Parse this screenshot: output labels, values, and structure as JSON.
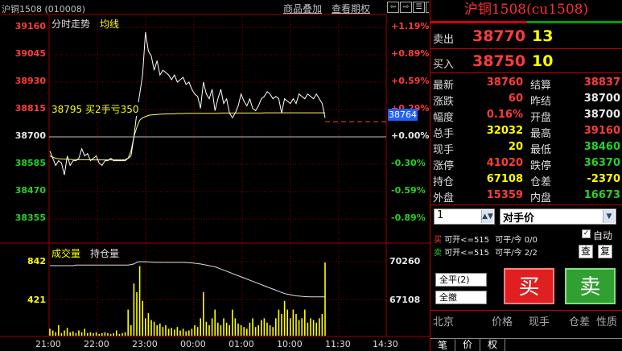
{
  "header": {
    "symbol_title": "沪铜1508 (010008)",
    "link_overlay": "商品叠加",
    "link_options": "查看期权",
    "chart_label": "分时走势",
    "avg_label": "均线",
    "volume_label": "成交量",
    "oi_label": "持仓量",
    "win_btn_1": "⇦",
    "win_btn_2": "⇨",
    "win_btn_3": "☰",
    "win_btn_4": "▦"
  },
  "axes": {
    "price_ticks": [
      "39160",
      "39045",
      "38930",
      "38815",
      "38700",
      "38585",
      "38470",
      "38355"
    ],
    "pct_ticks": [
      "+1.19%",
      "+0.89%",
      "+0.59%",
      "+0.29%",
      "+0.00%",
      "-0.30%",
      "-0.59%",
      "-0.89%"
    ],
    "vol_ticks": [
      "842",
      "421"
    ],
    "oi_ticks": [
      "70260",
      "67108"
    ],
    "time_ticks": [
      "21:00",
      "22:00",
      "23:00",
      "00:00",
      "01:00",
      "10:00",
      "11:30",
      "14:30"
    ],
    "current_price_tag": "38764",
    "cursor_info": "38795 买2手亏350"
  },
  "chart_data": {
    "type": "line",
    "ylim": [
      38355,
      39160
    ],
    "prev_settle": 38700,
    "price_series_name": "",
    "avg_series_name": "均线",
    "price": [
      38640,
      38610,
      38580,
      38600,
      38590,
      38540,
      38620,
      38580,
      38600,
      38600,
      38610,
      38650,
      38620,
      38630,
      38600,
      38610,
      38620,
      38590,
      38580,
      38600,
      38600,
      38610,
      38600,
      38600,
      38600,
      38600,
      38600,
      38610,
      38620,
      38700,
      38800,
      38880,
      38960,
      39140,
      39060,
      39040,
      38980,
      39020,
      38960,
      38980,
      38970,
      38960,
      38940,
      38960,
      38930,
      38940,
      38950,
      38920,
      38930,
      38900,
      38880,
      38870,
      38820,
      38930,
      38880,
      38860,
      38900,
      38810,
      38860,
      38900,
      38840,
      38860,
      38800,
      38780,
      38800,
      38830,
      38880,
      38850,
      38830,
      38860,
      38820,
      38810,
      38830,
      38860,
      38870,
      38890,
      38880,
      38860,
      38870,
      38860,
      38800,
      38860,
      38850,
      38840,
      38860,
      38840,
      38880,
      38870,
      38860,
      38880,
      38870,
      38860,
      38880,
      38860,
      38840,
      38780
    ],
    "avg": [
      38620,
      38615,
      38610,
      38608,
      38607,
      38606,
      38606,
      38605,
      38605,
      38604,
      38604,
      38604,
      38604,
      38604,
      38604,
      38603,
      38603,
      38603,
      38603,
      38603,
      38603,
      38603,
      38603,
      38603,
      38603,
      38603,
      38605,
      38610,
      38640,
      38700,
      38740,
      38770,
      38780,
      38785,
      38790,
      38792,
      38793,
      38794,
      38795,
      38796,
      38796,
      38797,
      38797,
      38797,
      38798,
      38798,
      38798,
      38799,
      38799,
      38799,
      38799,
      38799,
      38799,
      38799,
      38799,
      38799,
      38799,
      38799,
      38799,
      38800,
      38800,
      38800,
      38800,
      38800,
      38800,
      38800,
      38800,
      38800,
      38800,
      38800,
      38800,
      38800,
      38800,
      38800,
      38801,
      38801,
      38801,
      38801,
      38801,
      38801,
      38801,
      38801,
      38801,
      38801,
      38801,
      38801,
      38801,
      38801,
      38801,
      38801,
      38801,
      38801,
      38801,
      38801,
      38801,
      38801
    ],
    "volume": [
      80,
      60,
      40,
      120,
      30,
      60,
      90,
      40,
      50,
      30,
      60,
      40,
      80,
      30,
      40,
      30,
      40,
      20,
      30,
      40,
      30,
      20,
      30,
      60,
      20,
      30,
      40,
      300,
      120,
      600,
      500,
      800,
      400,
      200,
      260,
      180,
      160,
      120,
      140,
      100,
      120,
      80,
      90,
      70,
      100,
      60,
      80,
      50,
      60,
      80,
      120,
      100,
      200,
      500,
      160,
      120,
      200,
      300,
      150,
      120,
      200,
      150,
      120,
      300,
      200,
      140,
      120,
      100,
      80,
      150,
      200,
      100,
      120,
      180,
      200,
      150,
      120,
      100,
      200,
      300,
      250,
      400,
      300,
      200,
      300,
      250,
      180,
      200,
      300,
      150,
      200,
      180,
      150,
      200,
      250,
      842
    ],
    "open_interest": [
      69900,
      69900,
      69900,
      69900,
      69900,
      69900,
      69900,
      69900,
      69900,
      69950,
      69950,
      69950,
      69950,
      69950,
      69950,
      69950,
      69950,
      69950,
      69950,
      69950,
      69950,
      69950,
      69950,
      69950,
      69950,
      69950,
      69950,
      69950,
      70000,
      70050,
      70200,
      70260,
      70240,
      70250,
      70230,
      70220,
      70200,
      70200,
      70200,
      70200,
      70200,
      70200,
      70200,
      70200,
      70200,
      70200,
      70200,
      70180,
      70160,
      70150,
      70120,
      70080,
      70050,
      70000,
      69950,
      69900,
      69850,
      69800,
      69700,
      69600,
      69500,
      69400,
      69300,
      69200,
      69100,
      69000,
      68900,
      68800,
      68700,
      68600,
      68500,
      68400,
      68300,
      68200,
      68100,
      68000,
      67900,
      67800,
      67700,
      67600,
      67500,
      67400,
      67350,
      67300,
      67250,
      67200,
      67180,
      67150,
      67130,
      67120,
      67110,
      67108,
      67108,
      67108,
      67108,
      67108
    ],
    "vol_max": 842,
    "oi_range": [
      65000,
      70260
    ]
  },
  "panel": {
    "title": "沪铜1508(cu1508)",
    "sell_label": "卖出",
    "sell_price": "38770",
    "sell_qty": "13",
    "buy_label": "买入",
    "buy_price": "38750",
    "buy_qty": "10",
    "stats": [
      {
        "l": "最新",
        "v": "38760",
        "vc": "red",
        "l2": "结算",
        "v2": "38837",
        "v2c": "red"
      },
      {
        "l": "涨跌",
        "v": "60",
        "vc": "red",
        "l2": "昨结",
        "v2": "38700",
        "v2c": "wht"
      },
      {
        "l": "幅度",
        "v": "0.16%",
        "vc": "red",
        "l2": "开盘",
        "v2": "38700",
        "v2c": "wht"
      },
      {
        "l": "总手",
        "v": "32032",
        "vc": "yel",
        "l2": "最高",
        "v2": "39160",
        "v2c": "red"
      },
      {
        "l": "现手",
        "v": "20",
        "vc": "yel",
        "l2": "最低",
        "v2": "38460",
        "v2c": "grn"
      },
      {
        "l": "涨停",
        "v": "41020",
        "vc": "red",
        "l2": "跌停",
        "v2": "36370",
        "v2c": "grn"
      },
      {
        "l": "持仓",
        "v": "67108",
        "vc": "yel",
        "l2": "仓差",
        "v2": "-2370",
        "v2c": "yel"
      },
      {
        "l": "外盘",
        "v": "15359",
        "vc": "red",
        "l2": "内盘",
        "v2": "16673",
        "v2c": "grn"
      }
    ],
    "qty_value": "1",
    "price_mode": "对手价",
    "buy_line_1": "买",
    "buy_line_2": "可开<=515",
    "buy_line_3": "可平/今",
    "buy_line_4": "0/0",
    "sell_line_1": "卖",
    "sell_line_2": "可开<=515",
    "sell_line_3": "可平/今",
    "sell_line_4": "2/2",
    "auto_label": "自动",
    "btn_query": "查",
    "btn_repeat": "复",
    "btn_close_all": "全平(2)",
    "btn_cancel_all": "全撤",
    "btn_buy": "买",
    "btn_sell": "卖",
    "col_headers": [
      "北京",
      "价格",
      "现手",
      "仓差",
      "性质"
    ],
    "tabs": [
      "笔",
      "价",
      "权"
    ]
  }
}
